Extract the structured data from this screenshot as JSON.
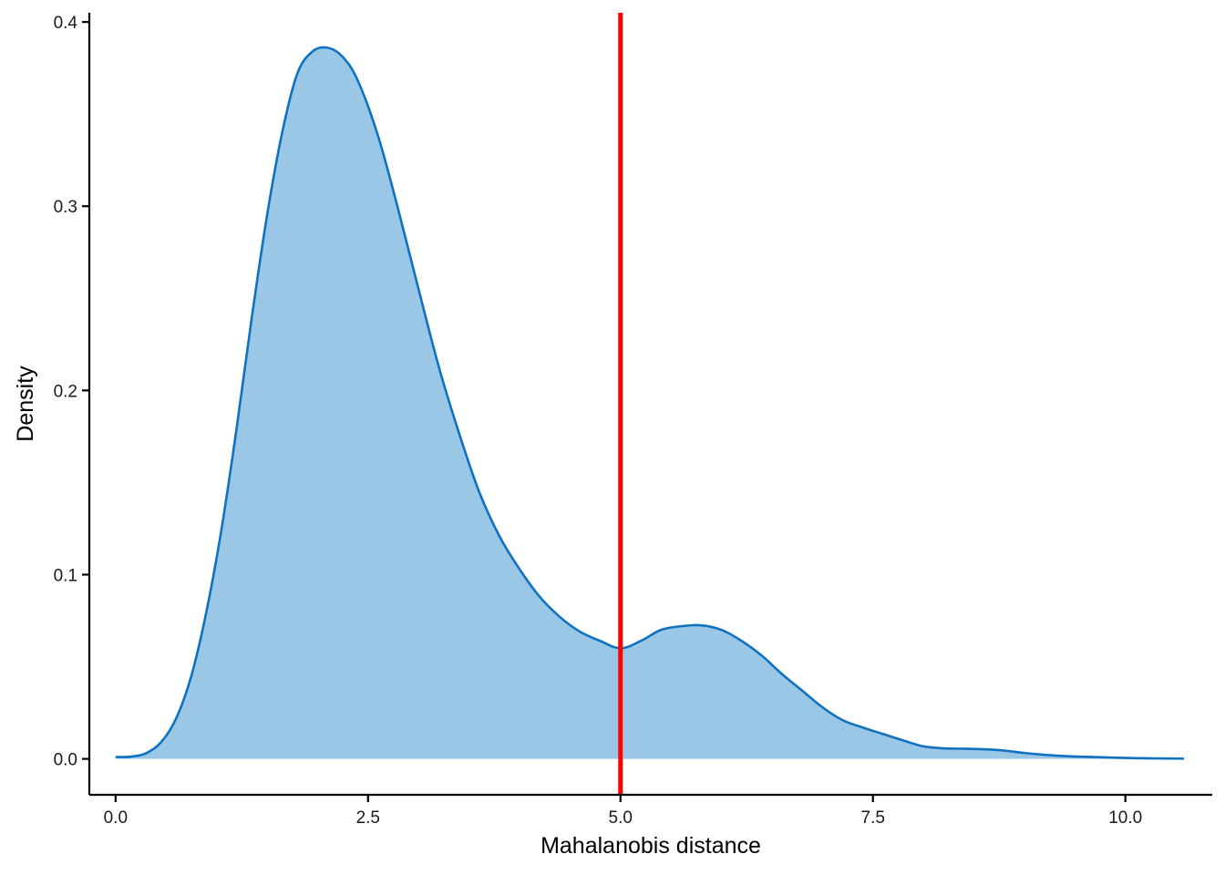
{
  "chart_data": {
    "type": "area",
    "title": "",
    "xlabel": "Mahalanobis distance",
    "ylabel": "Density",
    "xlim": [
      -0.26,
      10.86
    ],
    "ylim": [
      -0.0195,
      0.405
    ],
    "x_ticks": [
      0.0,
      2.5,
      5.0,
      7.5,
      10.0
    ],
    "x_tick_labels": [
      "0.0",
      "2.5",
      "5.0",
      "7.5",
      "10.0"
    ],
    "y_ticks": [
      0.0,
      0.1,
      0.2,
      0.3,
      0.4
    ],
    "y_tick_labels": [
      "0.0",
      "0.1",
      "0.2",
      "0.3",
      "0.4"
    ],
    "grid": false,
    "legend": "none",
    "fill_color": "#9AC7E6",
    "line_color": "#0E72C1",
    "vline": {
      "x": 5.0,
      "color": "#FF0000"
    },
    "series": [
      {
        "x": [
          0.0,
          0.15,
          0.3,
          0.45,
          0.6,
          0.75,
          0.9,
          1.05,
          1.2,
          1.35,
          1.5,
          1.65,
          1.8,
          1.95,
          2.1,
          2.25,
          2.4,
          2.6,
          2.8,
          3.0,
          3.2,
          3.4,
          3.6,
          3.8,
          4.0,
          4.2,
          4.4,
          4.6,
          4.8,
          5.0,
          5.2,
          5.4,
          5.6,
          5.8,
          6.0,
          6.2,
          6.4,
          6.6,
          6.8,
          7.0,
          7.2,
          7.4,
          7.6,
          7.8,
          8.0,
          8.2,
          8.4,
          8.6,
          8.8,
          9.0,
          9.2,
          9.4,
          9.6,
          9.8,
          10.0,
          10.2,
          10.4,
          10.58
        ],
        "y": [
          0.001,
          0.0012,
          0.003,
          0.009,
          0.022,
          0.045,
          0.08,
          0.125,
          0.18,
          0.24,
          0.295,
          0.34,
          0.372,
          0.384,
          0.386,
          0.381,
          0.368,
          0.338,
          0.298,
          0.255,
          0.213,
          0.177,
          0.145,
          0.121,
          0.103,
          0.088,
          0.077,
          0.069,
          0.064,
          0.06,
          0.064,
          0.07,
          0.072,
          0.0725,
          0.07,
          0.064,
          0.056,
          0.046,
          0.037,
          0.028,
          0.021,
          0.017,
          0.0135,
          0.01,
          0.0068,
          0.0057,
          0.0055,
          0.0052,
          0.0045,
          0.0032,
          0.0022,
          0.0015,
          0.0011,
          0.0008,
          0.0005,
          0.0003,
          0.0002,
          0.0001
        ]
      }
    ]
  }
}
